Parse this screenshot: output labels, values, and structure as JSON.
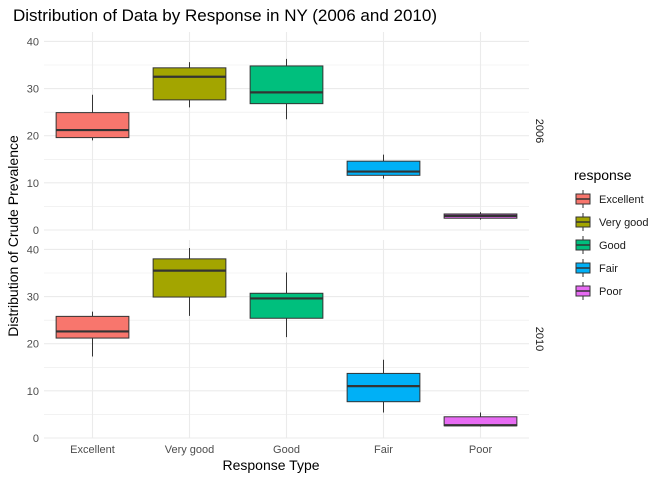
{
  "chart_data": {
    "type": "boxplot",
    "title": "Distribution of Data by Response in NY (2006 and 2010)",
    "xlabel": "Response Type",
    "ylabel": "Distribution of Crude Prevalence",
    "categories": [
      "Excellent",
      "Very good",
      "Good",
      "Fair",
      "Poor"
    ],
    "colors": [
      "#F8766D",
      "#A3A500",
      "#00BF7D",
      "#00B0F6",
      "#E76BF3"
    ],
    "ylim": [
      0,
      42
    ],
    "yticks": [
      0,
      10,
      20,
      30,
      40
    ],
    "grid": true,
    "legend": {
      "title": "response",
      "position": "right"
    },
    "facets": [
      {
        "label": "2006",
        "boxes": [
          {
            "category": "Excellent",
            "min": 19.0,
            "q1": 19.6,
            "median": 21.2,
            "q3": 24.9,
            "max": 28.7
          },
          {
            "category": "Very good",
            "min": 26.0,
            "q1": 27.6,
            "median": 32.5,
            "q3": 34.4,
            "max": 35.6
          },
          {
            "category": "Good",
            "min": 23.5,
            "q1": 26.8,
            "median": 29.2,
            "q3": 34.8,
            "max": 36.3
          },
          {
            "category": "Fair",
            "min": 10.9,
            "q1": 11.6,
            "median": 12.4,
            "q3": 14.6,
            "max": 16.0
          },
          {
            "category": "Poor",
            "min": 2.2,
            "q1": 2.5,
            "median": 3.0,
            "q3": 3.4,
            "max": 3.8
          }
        ]
      },
      {
        "label": "2010",
        "boxes": [
          {
            "category": "Excellent",
            "min": 17.3,
            "q1": 21.2,
            "median": 22.6,
            "q3": 25.8,
            "max": 26.8
          },
          {
            "category": "Very good",
            "min": 25.9,
            "q1": 29.9,
            "median": 35.5,
            "q3": 38.0,
            "max": 40.3
          },
          {
            "category": "Good",
            "min": 21.4,
            "q1": 25.4,
            "median": 29.6,
            "q3": 30.7,
            "max": 35.1
          },
          {
            "category": "Fair",
            "min": 5.4,
            "q1": 7.7,
            "median": 11.0,
            "q3": 13.7,
            "max": 16.6
          },
          {
            "category": "Poor",
            "min": 2.4,
            "q1": 2.6,
            "median": 2.7,
            "q3": 4.5,
            "max": 5.4
          }
        ]
      }
    ]
  }
}
